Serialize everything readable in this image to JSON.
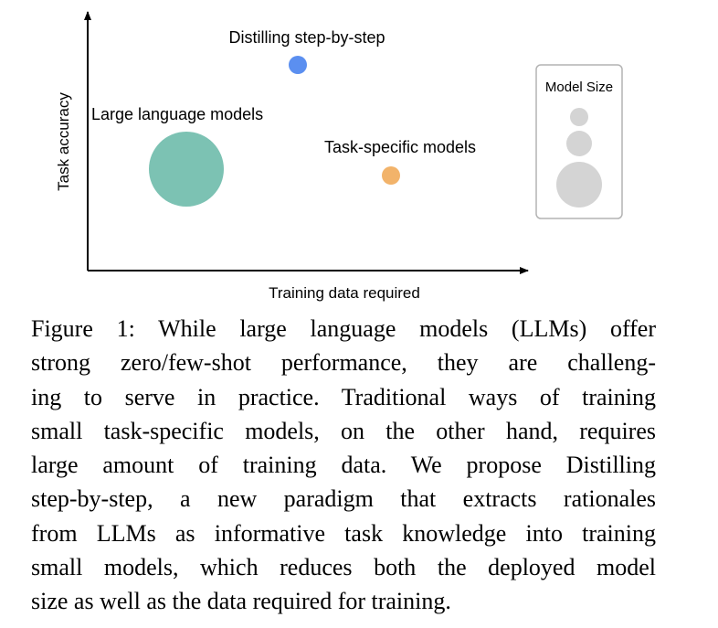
{
  "chart_data": {
    "type": "scatter",
    "xlabel": "Training data required",
    "ylabel": "Task accuracy",
    "points": [
      {
        "label": "Distilling step-by-step",
        "color": "#5b8ff0",
        "size": "small"
      },
      {
        "label": "Large language models",
        "color": "#7cc2b3",
        "size": "large"
      },
      {
        "label": "Task-specific models",
        "color": "#f2b36a",
        "size": "small"
      }
    ],
    "legend": {
      "title": "Model Size",
      "placement": "right",
      "entries": [
        "small",
        "medium",
        "large"
      ],
      "color": "#d4d4d4"
    }
  },
  "caption": {
    "label": "Figure 1:",
    "lines": [
      "While large language models (LLMs) offer",
      "strong zero/few-shot performance, they are challeng-",
      "ing to serve in practice. Traditional ways of training",
      "small task-specific models, on the other hand, requires",
      "large amount of training data. We propose Distilling",
      "step-by-step, a new paradigm that extracts rationales",
      "from LLMs as informative task knowledge into training",
      "small models, which reduces both the deployed model",
      "size as well as the data required for training."
    ]
  }
}
